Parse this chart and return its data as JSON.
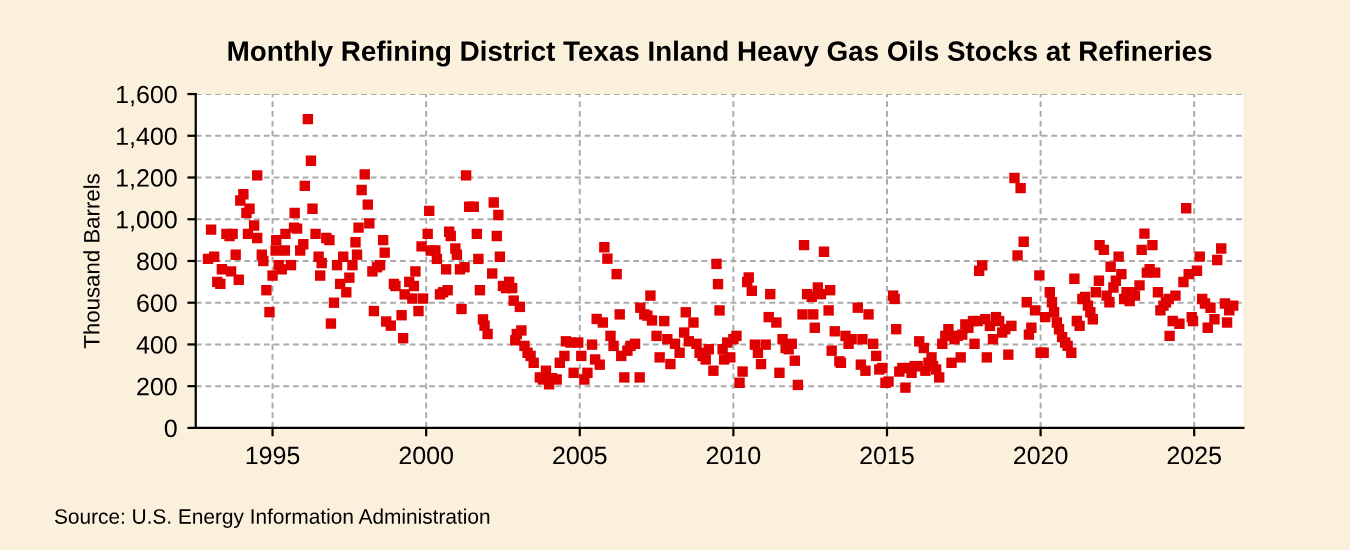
{
  "chart_data": {
    "type": "scatter",
    "title": "Monthly Refining District Texas Inland Heavy Gas Oils Stocks at Refineries",
    "ylabel": "Thousand Barrels",
    "annotations": [
      "Source: U.S. Energy Information Administration"
    ],
    "x": [
      1992.9,
      1993.0,
      1993.1,
      1993.2,
      1993.3,
      1993.35,
      1993.5,
      1993.6,
      1993.65,
      1993.7,
      1993.8,
      1993.9,
      1993.95,
      1994.05,
      1994.15,
      1994.2,
      1994.25,
      1994.4,
      1994.5,
      1994.5,
      1994.65,
      1994.7,
      1994.8,
      1994.9,
      1995.0,
      1995.1,
      1995.12,
      1995.2,
      1995.3,
      1995.4,
      1995.42,
      1995.6,
      1995.7,
      1995.72,
      1995.8,
      1995.9,
      1996.0,
      1996.05,
      1996.15,
      1996.25,
      1996.3,
      1996.4,
      1996.5,
      1996.55,
      1996.6,
      1996.75,
      1996.85,
      1996.9,
      1997.0,
      1997.1,
      1997.2,
      1997.3,
      1997.4,
      1997.5,
      1997.6,
      1997.7,
      1997.75,
      1997.8,
      1997.9,
      1998.0,
      1998.1,
      1998.15,
      1998.25,
      1998.3,
      1998.4,
      1998.5,
      1998.6,
      1998.65,
      1998.7,
      1998.85,
      1998.95,
      1999.0,
      1999.2,
      1999.25,
      1999.3,
      1999.45,
      1999.55,
      1999.6,
      1999.65,
      1999.75,
      1999.85,
      1999.9,
      2000.05,
      2000.1,
      2000.15,
      2000.3,
      2000.35,
      2000.45,
      2000.55,
      2000.65,
      2000.7,
      2000.75,
      2000.8,
      2000.95,
      2001.0,
      2001.1,
      2001.15,
      2001.25,
      2001.3,
      2001.4,
      2001.55,
      2001.65,
      2001.7,
      2001.75,
      2001.85,
      2001.9,
      2002.0,
      2002.15,
      2002.2,
      2002.3,
      2002.35,
      2002.4,
      2002.5,
      2002.6,
      2002.7,
      2002.8,
      2002.85,
      2002.9,
      2002.95,
      2003.05,
      2003.1,
      2003.2,
      2003.3,
      2003.4,
      2003.5,
      2003.7,
      2003.8,
      2003.9,
      2004.0,
      2004.1,
      2004.25,
      2004.35,
      2004.5,
      2004.55,
      2004.7,
      2004.8,
      2004.95,
      2005.05,
      2005.15,
      2005.25,
      2005.4,
      2005.5,
      2005.55,
      2005.65,
      2005.75,
      2005.8,
      2005.9,
      2006.0,
      2006.1,
      2006.2,
      2006.3,
      2006.35,
      2006.45,
      2006.55,
      2006.65,
      2006.8,
      2006.95,
      2006.97,
      2007.1,
      2007.2,
      2007.3,
      2007.35,
      2007.5,
      2007.6,
      2007.75,
      2007.85,
      2007.95,
      2008.1,
      2008.25,
      2008.4,
      2008.45,
      2008.55,
      2008.7,
      2008.8,
      2008.9,
      2009.0,
      2009.1,
      2009.2,
      2009.35,
      2009.45,
      2009.5,
      2009.55,
      2009.65,
      2009.7,
      2009.8,
      2009.9,
      2010.0,
      2010.1,
      2010.2,
      2010.3,
      2010.45,
      2010.5,
      2010.6,
      2010.7,
      2010.8,
      2010.9,
      2011.05,
      2011.15,
      2011.2,
      2011.4,
      2011.5,
      2011.6,
      2011.7,
      2011.8,
      2011.9,
      2012.0,
      2012.1,
      2012.25,
      2012.3,
      2012.4,
      2012.55,
      2012.6,
      2012.65,
      2012.75,
      2012.85,
      2012.95,
      2013.1,
      2013.15,
      2013.2,
      2013.3,
      2013.45,
      2013.5,
      2013.65,
      2013.75,
      2013.85,
      2014.05,
      2014.15,
      2014.2,
      2014.3,
      2014.4,
      2014.55,
      2014.65,
      2014.75,
      2014.85,
      2014.95,
      2015.05,
      2015.2,
      2015.25,
      2015.3,
      2015.4,
      2015.5,
      2015.6,
      2015.7,
      2015.8,
      2015.9,
      2016.0,
      2016.05,
      2016.2,
      2016.25,
      2016.35,
      2016.45,
      2016.5,
      2016.6,
      2016.7,
      2016.8,
      2016.9,
      2017.0,
      2017.1,
      2017.2,
      2017.3,
      2017.4,
      2017.45,
      2017.55,
      2017.65,
      2017.8,
      2017.85,
      2017.95,
      2018.0,
      2018.1,
      2018.2,
      2018.25,
      2018.35,
      2018.45,
      2018.55,
      2018.65,
      2018.75,
      2018.85,
      2018.95,
      2019.05,
      2019.15,
      2019.25,
      2019.35,
      2019.45,
      2019.55,
      2019.62,
      2019.7,
      2019.82,
      2019.96,
      2020.0,
      2020.1,
      2020.15,
      2020.3,
      2020.37,
      2020.44,
      2020.53,
      2020.6,
      2020.7,
      2020.8,
      2020.88,
      2021.0,
      2021.1,
      2021.18,
      2021.27,
      2021.36,
      2021.45,
      2021.54,
      2021.62,
      2021.7,
      2021.8,
      2021.9,
      2021.92,
      2022.06,
      2022.15,
      2022.24,
      2022.28,
      2022.37,
      2022.45,
      2022.54,
      2022.63,
      2022.72,
      2022.8,
      2022.9,
      2022.98,
      2023.07,
      2023.22,
      2023.29,
      2023.38,
      2023.46,
      2023.55,
      2023.64,
      2023.73,
      2023.82,
      2023.9,
      2024.0,
      2024.08,
      2024.17,
      2024.2,
      2024.3,
      2024.39,
      2024.52,
      2024.65,
      2024.74,
      2024.82,
      2024.92,
      2024.96,
      2025.09,
      2025.18,
      2025.26,
      2025.35,
      2025.44,
      2025.53,
      2025.66,
      2025.75,
      2025.88,
      2026.0,
      2026.07,
      2026.14,
      2026.27
    ],
    "values": [
      810,
      950,
      820,
      700,
      690,
      760,
      930,
      920,
      750,
      930,
      830,
      710,
      1090,
      1120,
      1030,
      930,
      1050,
      970,
      1210,
      910,
      830,
      800,
      660,
      555,
      730,
      850,
      900,
      780,
      760,
      850,
      930,
      780,
      960,
      1030,
      955,
      850,
      880,
      1160,
      1480,
      1280,
      1050,
      930,
      820,
      730,
      790,
      910,
      900,
      500,
      600,
      780,
      690,
      820,
      650,
      720,
      780,
      890,
      830,
      960,
      1140,
      1215,
      1070,
      980,
      750,
      560,
      770,
      780,
      900,
      840,
      510,
      490,
      690,
      680,
      540,
      430,
      640,
      700,
      620,
      680,
      750,
      560,
      870,
      620,
      930,
      1040,
      850,
      850,
      810,
      640,
      650,
      760,
      660,
      940,
      920,
      860,
      830,
      760,
      570,
      770,
      1210,
      1060,
      1060,
      930,
      810,
      660,
      520,
      490,
      450,
      740,
      1080,
      920,
      1020,
      820,
      680,
      670,
      700,
      670,
      610,
      420,
      450,
      580,
      467,
      393,
      360,
      345,
      312,
      242,
      232,
      274,
      209,
      238,
      232,
      312,
      345,
      415,
      409,
      264,
      409,
      345,
      232,
      264,
      399,
      328,
      522,
      303,
      505,
      866,
      811,
      441,
      393,
      737,
      544,
      345,
      242,
      370,
      393,
      403,
      242,
      576,
      544,
      538,
      634,
      515,
      441,
      338,
      512,
      425,
      306,
      403,
      360,
      457,
      554,
      415,
      505,
      403,
      360,
      345,
      328,
      377,
      274,
      786,
      689,
      563,
      377,
      328,
      409,
      338,
      425,
      441,
      216,
      270,
      699,
      721,
      657,
      399,
      360,
      306,
      399,
      531,
      641,
      505,
      264,
      425,
      383,
      377,
      403,
      322,
      206,
      544,
      876,
      641,
      628,
      544,
      480,
      673,
      641,
      844,
      563,
      660,
      370,
      463,
      319,
      312,
      441,
      403,
      425,
      576,
      303,
      425,
      274,
      544,
      403,
      345,
      280,
      287,
      216,
      222,
      634,
      618,
      473,
      270,
      287,
      193,
      287,
      264,
      296,
      296,
      415,
      383,
      274,
      312,
      338,
      296,
      280,
      242,
      403,
      441,
      473,
      312,
      425,
      441,
      338,
      447,
      496,
      480,
      512,
      403,
      512,
      753,
      779,
      521,
      338,
      489,
      425,
      531,
      512,
      457,
      473,
      351,
      489,
      1198,
      827,
      1149,
      892,
      602,
      447,
      480,
      563,
      731,
      360,
      360,
      531,
      650,
      602,
      554,
      505,
      473,
      435,
      409,
      393,
      360,
      715,
      512,
      489,
      618,
      628,
      586,
      554,
      521,
      650,
      705,
      876,
      853,
      634,
      602,
      772,
      673,
      705,
      821,
      737,
      618,
      650,
      608,
      650,
      634,
      683,
      853,
      931,
      744,
      760,
      876,
      744,
      650,
      563,
      586,
      602,
      618,
      441,
      512,
      634,
      499,
      699,
      1053,
      737,
      531,
      512,
      753,
      821,
      618,
      596,
      480,
      576,
      521,
      805,
      860,
      596,
      505,
      563,
      586
    ],
    "color": "#e00000",
    "marker": "square",
    "xlim": [
      1992.5,
      2026.6
    ],
    "xticks": [
      1995,
      2000,
      2005,
      2010,
      2015,
      2020,
      2025
    ],
    "ylim": [
      0,
      1600
    ],
    "yticks": [
      {
        "value": 0,
        "label": "0"
      },
      {
        "value": 200,
        "label": "200"
      },
      {
        "value": 400,
        "label": "400"
      },
      {
        "value": 600,
        "label": "600"
      },
      {
        "value": 800,
        "label": "800"
      },
      {
        "value": 1000,
        "label": "1,000"
      },
      {
        "value": 1200,
        "label": "1,200"
      },
      {
        "value": 1400,
        "label": "1,400"
      },
      {
        "value": 1600,
        "label": "1,600"
      }
    ],
    "grid": true
  }
}
